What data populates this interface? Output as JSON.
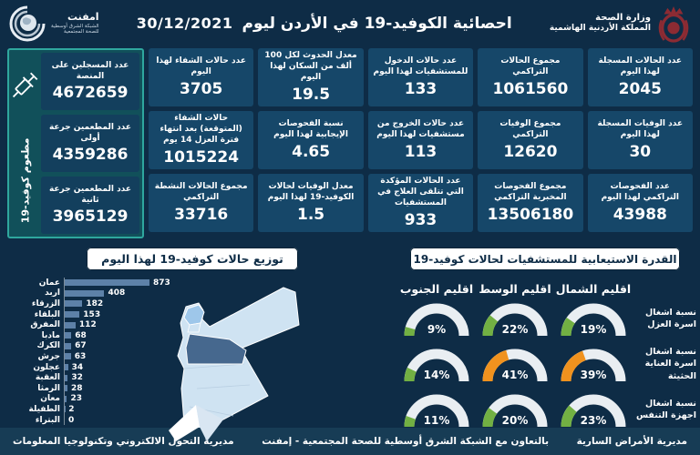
{
  "header": {
    "ministry": {
      "line1": "وزارة الصحة",
      "line2": "المملكة الأردنية الهاشمية"
    },
    "title": "احصائية الكوفيد-19 في الأردن ليوم",
    "date": "30/12/2021",
    "emphnet": {
      "name": "امفنت",
      "sub1": "الشبكة الشرق أوسطية",
      "sub2": "للصحة المجتمعية"
    }
  },
  "stats_columns": [
    {
      "boxes": [
        {
          "label": "عدد الحالات المسجلة لهذا اليوم",
          "value": "2045"
        },
        {
          "label": "عدد الوفيات المسجلة لهذا اليوم",
          "value": "30"
        },
        {
          "label": "عدد الفحوصات التراكمي لهذا اليوم",
          "value": "43988"
        }
      ]
    },
    {
      "boxes": [
        {
          "label": "مجموع الحالات التراكمي",
          "value": "1061560"
        },
        {
          "label": "مجموع الوفيات التراكمي",
          "value": "12620"
        },
        {
          "label": "مجموع الفحوصات المخبرية التراكمي",
          "value": "13506180"
        }
      ]
    },
    {
      "boxes": [
        {
          "label": "عدد حالات الدخول للمستشفيات لهذا اليوم",
          "value": "133"
        },
        {
          "label": "عدد حالات الخروج من مستشفيات لهذا اليوم",
          "value": "113"
        },
        {
          "label": "عدد الحالات المؤكدة التي تتلقى العلاج في المستشفيات",
          "value": "933"
        }
      ]
    },
    {
      "boxes": [
        {
          "label": "معدل الحدوث لكل 100 ألف من السكان لهذا اليوم",
          "value": "19.5"
        },
        {
          "label": "نسبة الفحوصات الإيجابية لهذا اليوم",
          "value": "4.65"
        },
        {
          "label": "معدل الوفيات لحالات الكوفيد-19 لهذا اليوم",
          "value": "1.5"
        }
      ]
    },
    {
      "boxes": [
        {
          "label": "عدد حالات الشفاء لهذا اليوم",
          "value": "3705"
        },
        {
          "label": "حالات الشفاء (المتوقعة) بعد انتهاء فترة العزل 14 يوم",
          "value": "1015224"
        },
        {
          "label": "مجموع الحالات النشطة التراكمي",
          "value": "33716"
        }
      ]
    }
  ],
  "vaccination": {
    "side_label": "مطعوم كوفيد-19",
    "boxes": [
      {
        "label": "عدد المسجلين على المنصة",
        "value": "4672659"
      },
      {
        "label": "عدد المطعمين جرعة أولى",
        "value": "4359286"
      },
      {
        "label": "عدد المطعمين جرعة ثانية",
        "value": "3965129"
      }
    ]
  },
  "chart_data": [
    {
      "type": "bar",
      "orientation": "horizontal",
      "title": "توزيع حالات كوفيد-19 لهذا اليوم",
      "categories": [
        "عمان",
        "اربد",
        "الزرقاء",
        "البلقاء",
        "المفرق",
        "مادبا",
        "الكرك",
        "جرش",
        "عجلون",
        "العقبة",
        "الرمثا",
        "معان",
        "الطفيلة",
        "البتراء"
      ],
      "values": [
        873,
        408,
        182,
        153,
        112,
        68,
        67,
        63,
        34,
        32,
        28,
        23,
        2,
        0
      ],
      "xlim": [
        0,
        900
      ],
      "bar_color": "#5d81a8"
    },
    {
      "type": "gauge-grid",
      "title": "القدرة الاستيعابية للمستشفيات لحالات كوفيد-19",
      "unit": "%",
      "columns": [
        "اقليم الشمال",
        "اقليم الوسط",
        "اقليم الجنوب"
      ],
      "rows": [
        {
          "label": "نسبة اشغال اسرة العزل",
          "values": [
            19,
            22,
            9
          ],
          "colors": [
            "green",
            "green",
            "green"
          ]
        },
        {
          "label": "نسبة اشغال اسرة العناية الحثيثة",
          "values": [
            39,
            41,
            14
          ],
          "colors": [
            "orange",
            "orange",
            "green"
          ]
        },
        {
          "label": "نسبة اشغال اجهزة التنفس",
          "values": [
            23,
            20,
            11
          ],
          "colors": [
            "green",
            "green",
            "green"
          ]
        }
      ]
    }
  ],
  "footer": {
    "right": "مديرية الأمراض السارية",
    "center": "بالتعاون مع الشبكة الشرق أوسطية للصحة المجتمعية - إمفنت",
    "left": "مديرية التحول الالكتروني وتكنولوجيا المعلومات"
  },
  "colors": {
    "bg": "#0e2c46",
    "box": "#164769",
    "teal": "#2fa79e",
    "teal_bg": "#11505a",
    "green": "#72b043",
    "orange": "#f0921e",
    "track": "#e9eef2",
    "bar": "#5d81a8",
    "map_light": "#cfe3f2",
    "map_mid": "#9ec7ea",
    "map_dark": "#46688e",
    "footer_bg": "#173c55",
    "crest": "#8c2b33"
  }
}
